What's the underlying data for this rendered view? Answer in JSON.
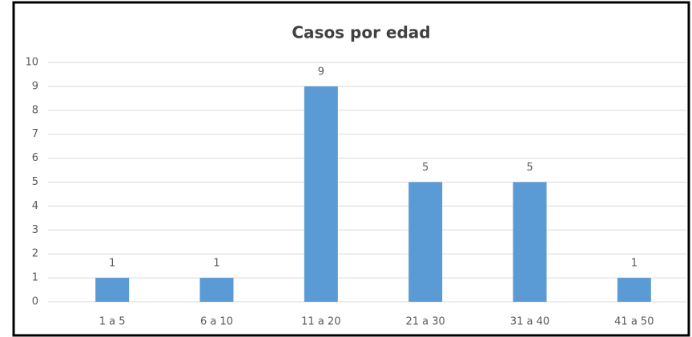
{
  "chart_data": {
    "type": "bar",
    "title": "Casos por edad",
    "categories": [
      "1 a 5",
      "6 a 10",
      "11 a 20",
      "21 a 30",
      "31 a 40",
      "41 a 50"
    ],
    "values": [
      1,
      1,
      9,
      5,
      5,
      1
    ],
    "color": "#5b9bd5",
    "ylim": [
      0,
      10
    ],
    "yticks": [
      0,
      1,
      2,
      3,
      4,
      5,
      6,
      7,
      8,
      9,
      10
    ],
    "grid": true,
    "data_labels": true
  }
}
